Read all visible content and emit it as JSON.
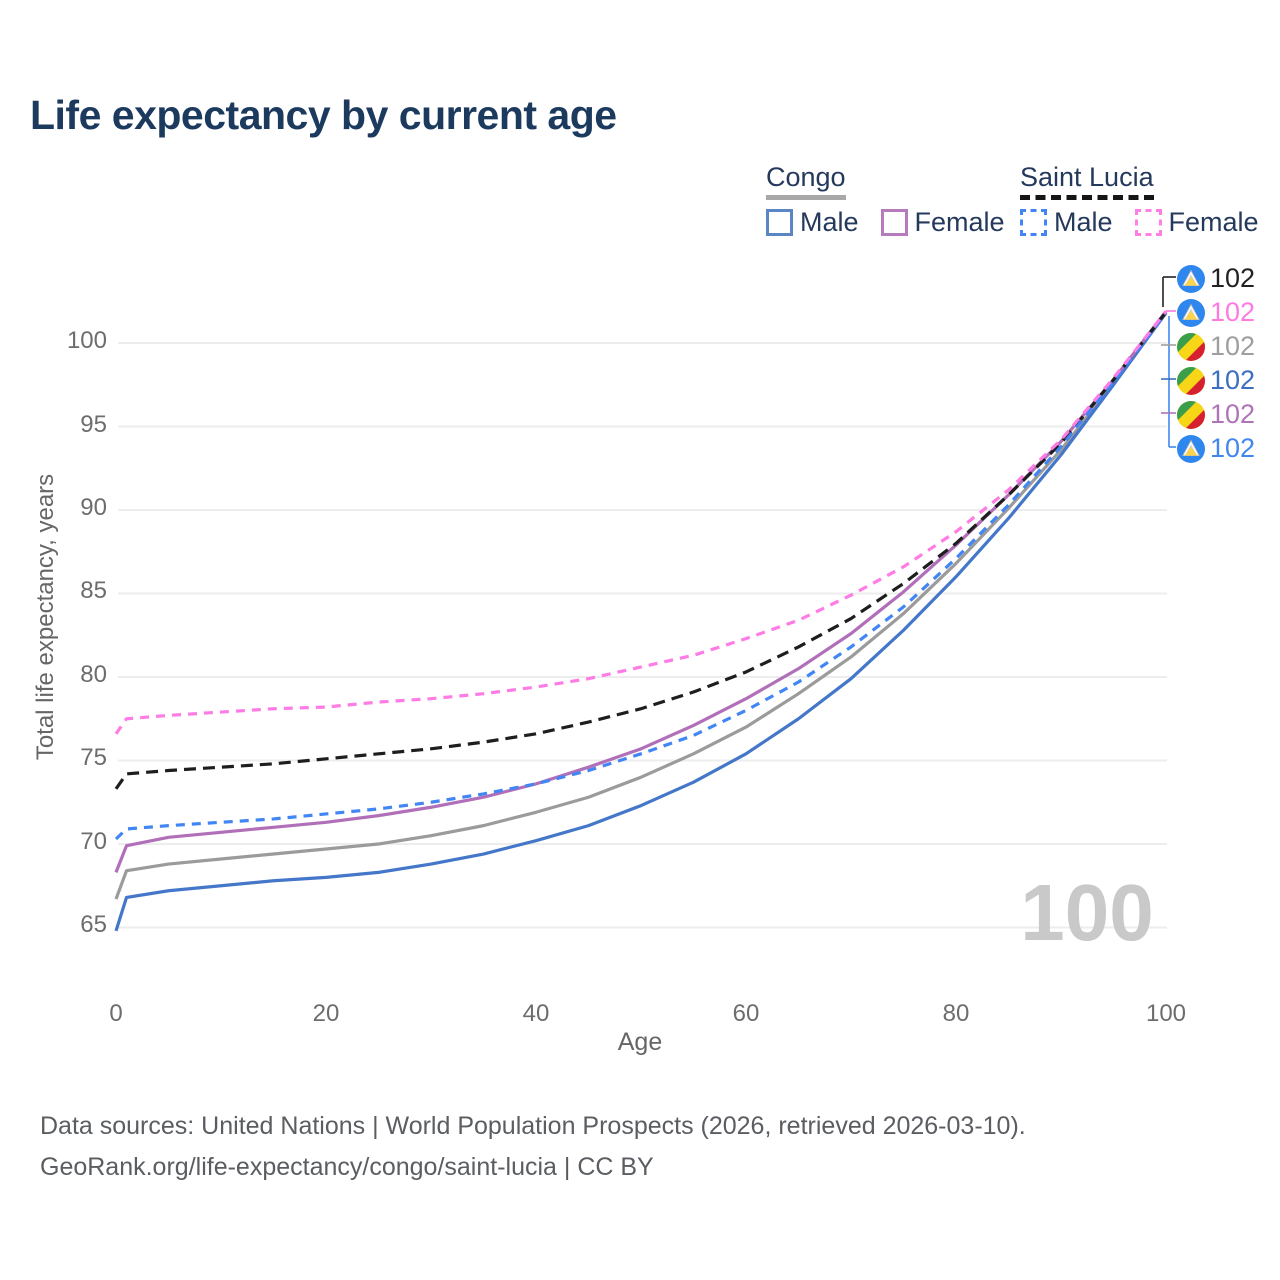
{
  "title": "Life expectancy by current age",
  "legend": {
    "groups": [
      {
        "name": "Congo",
        "line_style": "solid",
        "underline_color": "#a8a8a8",
        "items": [
          {
            "label": "Male",
            "color": "#5b86c6",
            "dashed": false
          },
          {
            "label": "Female",
            "color": "#b77bbd",
            "dashed": false
          }
        ]
      },
      {
        "name": "Saint Lucia",
        "line_style": "dashed",
        "underline_color": "#161616",
        "items": [
          {
            "label": "Male",
            "color": "#4285f4",
            "dashed": true
          },
          {
            "label": "Female",
            "color": "#ff80e5",
            "dashed": true
          }
        ]
      }
    ]
  },
  "chart_data": {
    "type": "line",
    "title": "Life expectancy by current age",
    "xlabel": "Age",
    "ylabel": "Total life expectancy, years",
    "x_ticks": [
      0,
      20,
      40,
      60,
      80,
      100
    ],
    "y_ticks": [
      65,
      70,
      75,
      80,
      85,
      90,
      95,
      100
    ],
    "xlim": [
      0,
      100
    ],
    "ylim": [
      64,
      103
    ],
    "grid": "horizontal",
    "legend_position": "top-right",
    "ages": [
      0,
      1,
      5,
      10,
      15,
      20,
      25,
      30,
      35,
      40,
      45,
      50,
      55,
      60,
      65,
      70,
      75,
      80,
      85,
      90,
      95,
      100
    ],
    "series": [
      {
        "name": "Congo Both sexes",
        "country": "congo",
        "color": "#9b9b9b",
        "dashed": false,
        "values": [
          66.7,
          68.4,
          68.8,
          69.1,
          69.4,
          69.7,
          70.0,
          70.5,
          71.1,
          71.9,
          72.8,
          74.0,
          75.4,
          77.0,
          79.0,
          81.2,
          83.8,
          86.8,
          90.1,
          93.6,
          97.6,
          101.8
        ]
      },
      {
        "name": "Congo Male",
        "country": "congo",
        "color": "#4477c9",
        "dashed": false,
        "values": [
          64.8,
          66.8,
          67.2,
          67.5,
          67.8,
          68.0,
          68.3,
          68.8,
          69.4,
          70.2,
          71.1,
          72.3,
          73.7,
          75.4,
          77.5,
          79.9,
          82.8,
          86.0,
          89.5,
          93.3,
          97.5,
          101.8
        ]
      },
      {
        "name": "Congo Female",
        "country": "congo",
        "color": "#b06fb8",
        "dashed": false,
        "values": [
          68.3,
          69.9,
          70.4,
          70.7,
          71.0,
          71.3,
          71.7,
          72.2,
          72.8,
          73.6,
          74.6,
          75.7,
          77.1,
          78.7,
          80.5,
          82.6,
          85.1,
          87.9,
          90.9,
          94.1,
          97.8,
          101.9
        ]
      },
      {
        "name": "Saint Lucia Both sexes",
        "country": "saint-lucia",
        "color": "#1e1e1e",
        "dashed": true,
        "values": [
          73.3,
          74.2,
          74.4,
          74.6,
          74.8,
          75.1,
          75.4,
          75.7,
          76.1,
          76.6,
          77.3,
          78.1,
          79.1,
          80.3,
          81.8,
          83.5,
          85.6,
          88.0,
          90.9,
          94.0,
          97.8,
          101.85
        ]
      },
      {
        "name": "Saint Lucia Male",
        "country": "saint-lucia",
        "color": "#4285f4",
        "dashed": true,
        "values": [
          70.3,
          70.9,
          71.1,
          71.3,
          71.5,
          71.8,
          72.1,
          72.5,
          73.0,
          73.6,
          74.4,
          75.4,
          76.5,
          78.0,
          79.7,
          81.8,
          84.2,
          87.1,
          90.3,
          93.8,
          97.7,
          101.8
        ]
      },
      {
        "name": "Saint Lucia Female",
        "country": "saint-lucia",
        "color": "#ff7ce5",
        "dashed": true,
        "values": [
          76.6,
          77.5,
          77.7,
          77.9,
          78.1,
          78.2,
          78.5,
          78.7,
          79.0,
          79.4,
          79.9,
          80.6,
          81.3,
          82.3,
          83.4,
          84.9,
          86.6,
          88.7,
          91.2,
          94.2,
          97.9,
          101.9
        ]
      }
    ],
    "end_labels": [
      {
        "value": "102",
        "color": "#222222",
        "flag": "saint-lucia",
        "series": "Saint Lucia Both sexes"
      },
      {
        "value": "102",
        "color": "#ff7ae0",
        "flag": "saint-lucia",
        "series": "Saint Lucia Female"
      },
      {
        "value": "102",
        "color": "#9e9e9e",
        "flag": "congo",
        "series": "Congo Both sexes"
      },
      {
        "value": "102",
        "color": "#3d6fc0",
        "flag": "congo",
        "series": "Congo Male"
      },
      {
        "value": "102",
        "color": "#af74b8",
        "flag": "congo",
        "series": "Congo Female"
      },
      {
        "value": "102",
        "color": "#4187f0",
        "flag": "saint-lucia",
        "series": "Saint Lucia Male"
      }
    ]
  },
  "watermark": "100",
  "footer": {
    "line1": "Data sources: United Nations | World Population Prospects (2026, retrieved 2026-03-10).",
    "line2": "GeoRank.org/life-expectancy/congo/saint-lucia | CC BY"
  }
}
